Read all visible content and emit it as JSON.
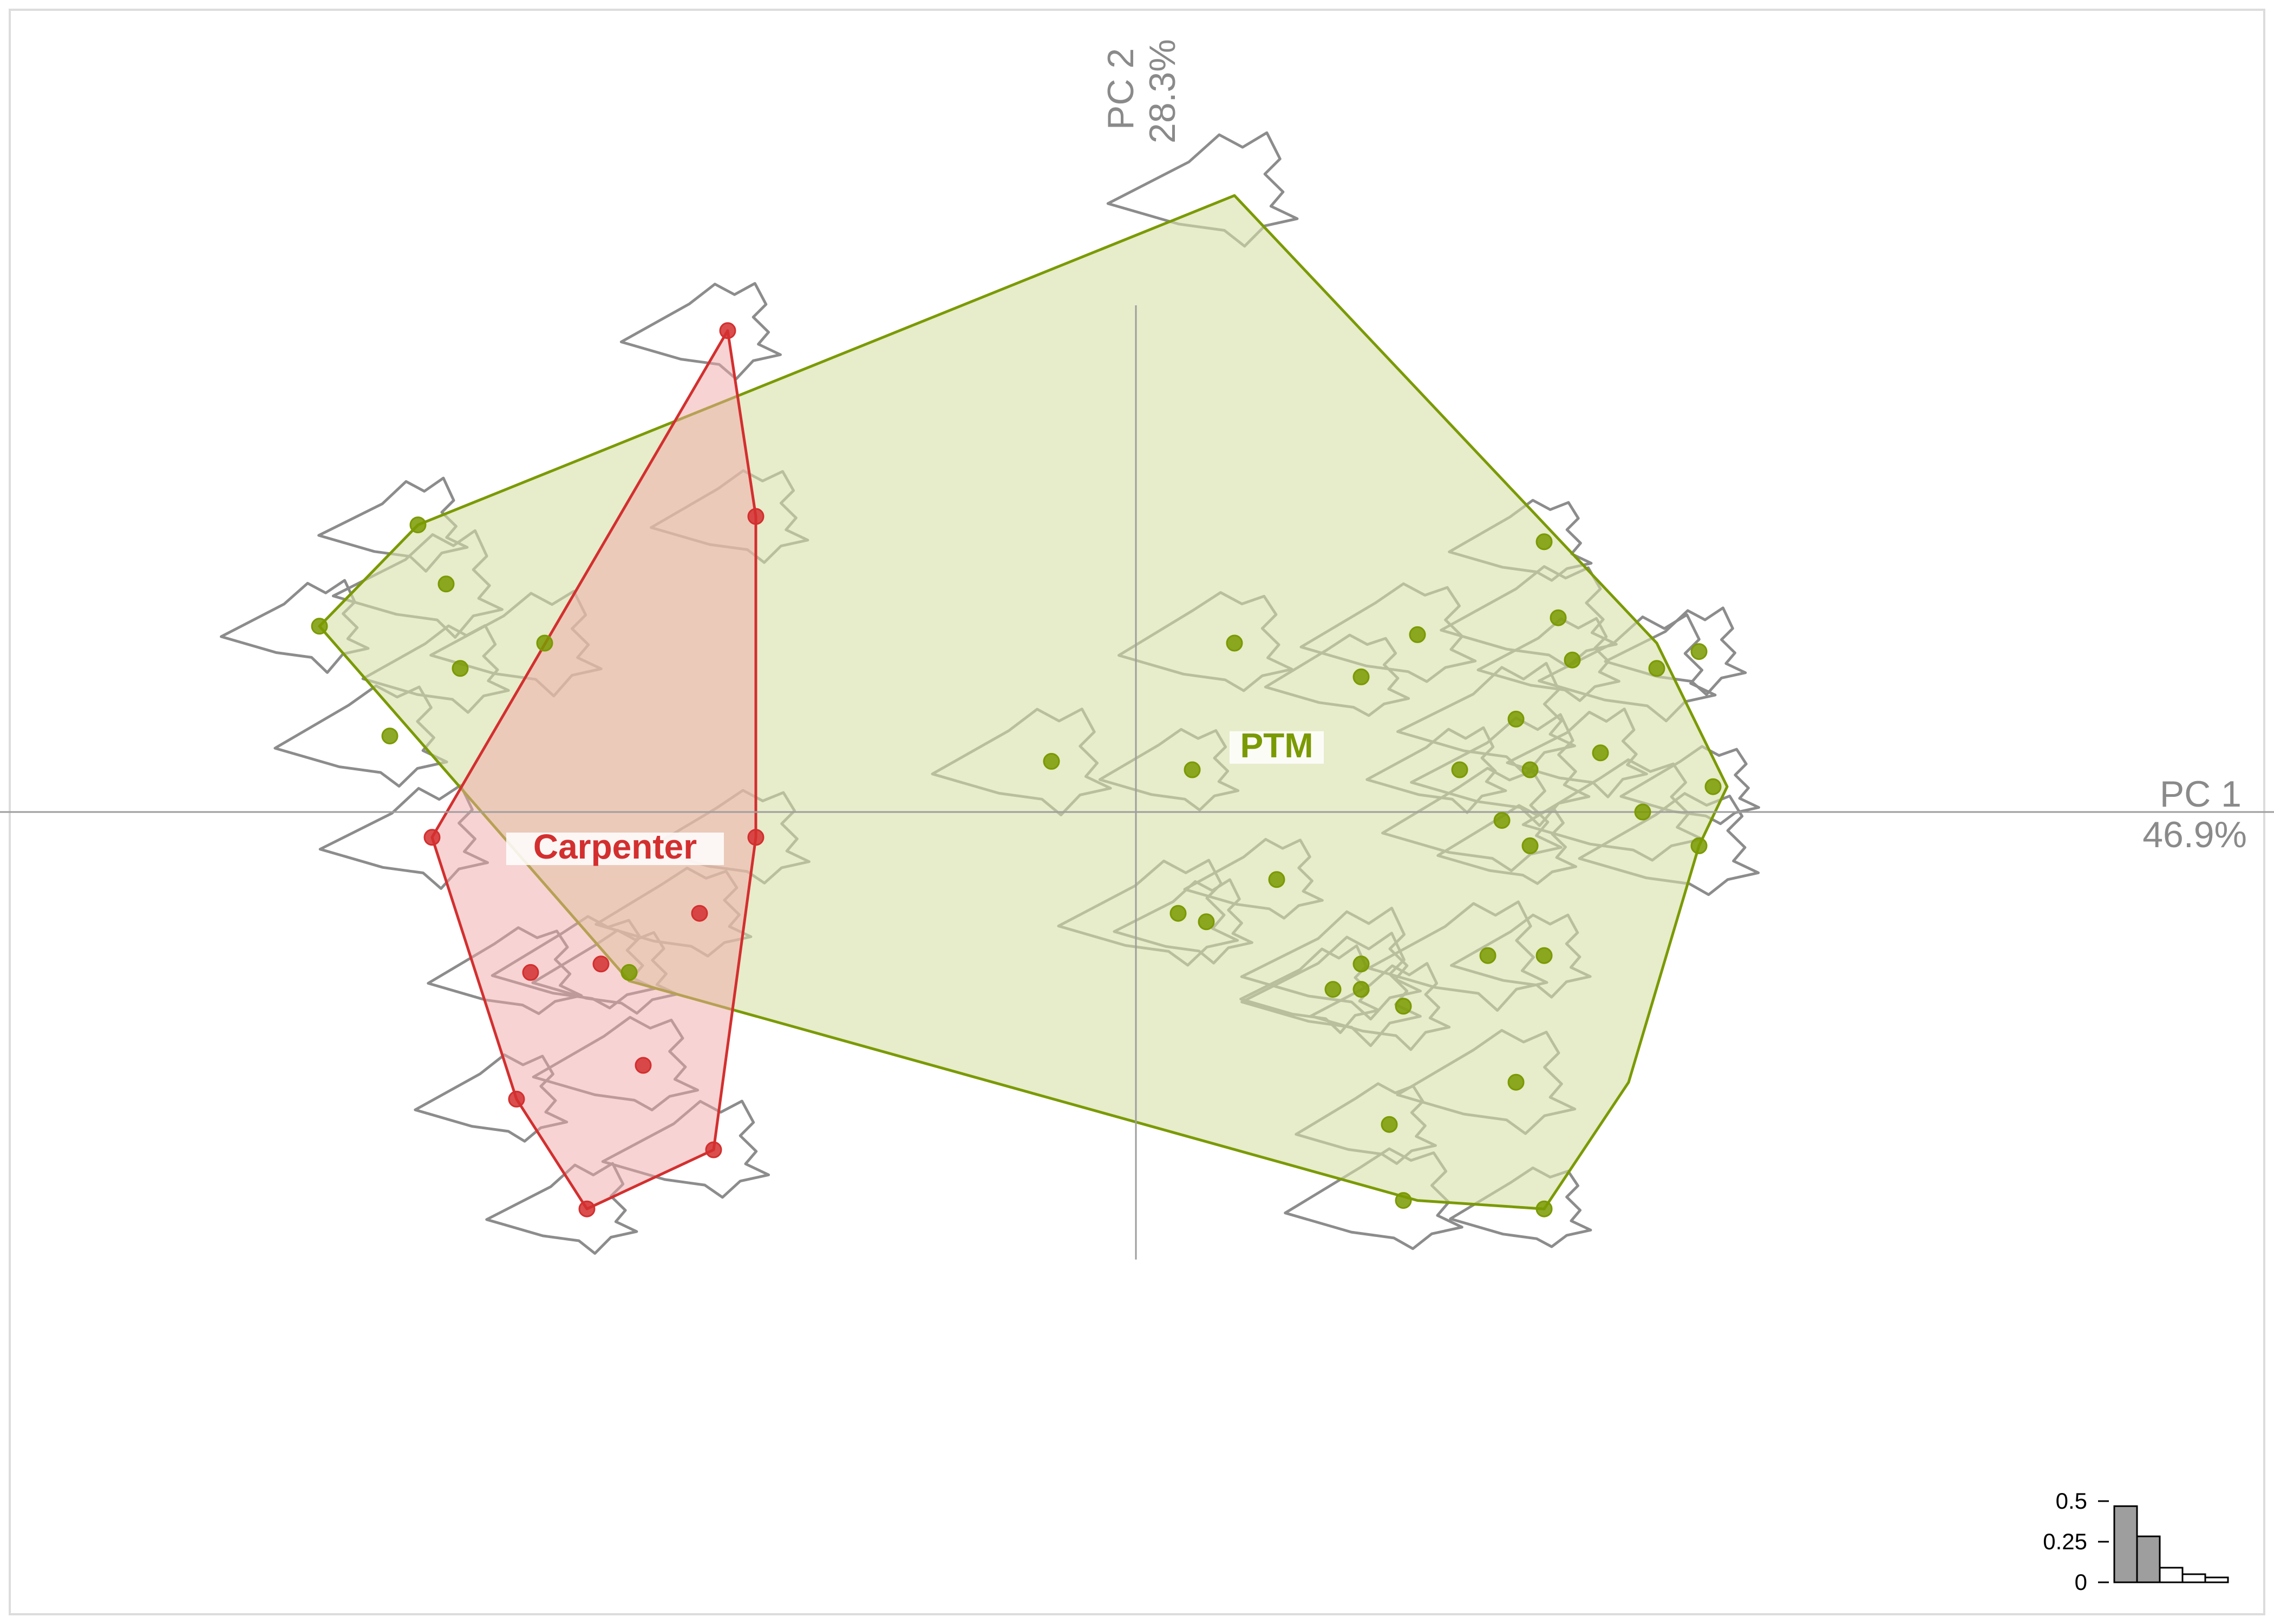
{
  "colors": {
    "carpenter": "#d32f2f",
    "carpenter_fill": "#f2a8a8",
    "ptm": "#7a9a01",
    "ptm_fill": "#d7e0a8",
    "shape_outline": "#8c8c8c",
    "axis": "#9e9e9e",
    "scree_filled": "#9e9e9e"
  },
  "chart_data": {
    "type": "scatter",
    "xaxis_label": "PC 1",
    "xaxis_variance": "46.9%",
    "yaxis_label": "PC 2",
    "yaxis_variance": "28.3%",
    "xlim": [
      -1.0,
      1.3
    ],
    "ylim": [
      -0.55,
      0.75
    ],
    "series": [
      {
        "name": "Carpenter",
        "color": "#d32f2f",
        "points": [
          [
            -0.29,
            0.57
          ],
          [
            -0.27,
            0.35
          ],
          [
            -0.27,
            -0.03
          ],
          [
            -0.31,
            -0.12
          ],
          [
            -0.38,
            -0.18
          ],
          [
            -0.43,
            -0.19
          ],
          [
            -0.35,
            -0.3
          ],
          [
            -0.44,
            -0.34
          ],
          [
            -0.3,
            -0.4
          ],
          [
            -0.39,
            -0.47
          ],
          [
            -0.5,
            -0.03
          ]
        ]
      },
      {
        "name": "PTM",
        "color": "#7a9a01",
        "points": [
          [
            -0.51,
            0.34
          ],
          [
            -0.49,
            0.27
          ],
          [
            -0.58,
            0.22
          ],
          [
            -0.42,
            0.2
          ],
          [
            -0.48,
            0.17
          ],
          [
            -0.53,
            0.09
          ],
          [
            -0.36,
            -0.19
          ],
          [
            0.07,
            0.2
          ],
          [
            0.16,
            0.16
          ],
          [
            0.2,
            0.21
          ],
          [
            0.29,
            0.32
          ],
          [
            0.3,
            0.23
          ],
          [
            0.31,
            0.18
          ],
          [
            0.37,
            0.17
          ],
          [
            0.4,
            0.19
          ],
          [
            0.27,
            0.11
          ],
          [
            0.33,
            0.07
          ],
          [
            0.28,
            0.05
          ],
          [
            0.23,
            0.05
          ],
          [
            -0.06,
            0.06
          ],
          [
            0.04,
            0.05
          ],
          [
            0.26,
            -0.01
          ],
          [
            0.28,
            -0.04
          ],
          [
            0.36,
            0.0
          ],
          [
            0.41,
            0.03
          ],
          [
            0.4,
            -0.04
          ],
          [
            0.1,
            -0.08
          ],
          [
            0.03,
            -0.12
          ],
          [
            0.05,
            -0.13
          ],
          [
            0.16,
            -0.18
          ],
          [
            0.14,
            -0.21
          ],
          [
            0.16,
            -0.21
          ],
          [
            0.19,
            -0.23
          ],
          [
            0.25,
            -0.17
          ],
          [
            0.29,
            -0.17
          ],
          [
            0.27,
            -0.32
          ],
          [
            0.18,
            -0.37
          ],
          [
            0.19,
            -0.46
          ],
          [
            0.29,
            -0.47
          ]
        ]
      }
    ],
    "hulls": [
      {
        "name": "Carpenter",
        "vertices": [
          [
            -0.29,
            0.57
          ],
          [
            -0.27,
            0.35
          ],
          [
            -0.27,
            -0.03
          ],
          [
            -0.3,
            -0.4
          ],
          [
            -0.39,
            -0.47
          ],
          [
            -0.44,
            -0.34
          ],
          [
            -0.5,
            -0.03
          ]
        ]
      },
      {
        "name": "PTM",
        "vertices": [
          [
            0.07,
            0.73
          ],
          [
            0.37,
            0.2
          ],
          [
            0.42,
            0.03
          ],
          [
            0.4,
            -0.04
          ],
          [
            0.35,
            -0.32
          ],
          [
            0.29,
            -0.47
          ],
          [
            0.2,
            -0.46
          ],
          [
            -0.36,
            -0.2
          ],
          [
            -0.58,
            0.22
          ],
          [
            -0.51,
            0.34
          ]
        ]
      }
    ],
    "group_labels": [
      {
        "text": "Carpenter",
        "x": -0.37,
        "y": -0.05,
        "color": "#d32f2f"
      },
      {
        "text": "PTM",
        "x": 0.1,
        "y": 0.07,
        "color": "#7a9a01"
      }
    ],
    "scree": {
      "ticks": [
        "0.5",
        "0.25",
        "0"
      ],
      "tick_values": [
        0.5,
        0.25,
        0
      ],
      "values": [
        0.469,
        0.283,
        0.09,
        0.05,
        0.03
      ],
      "filled_count": 2
    }
  }
}
